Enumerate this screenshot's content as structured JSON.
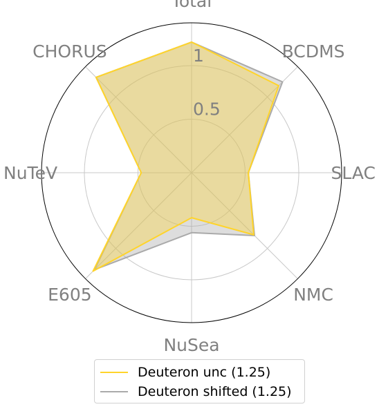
{
  "chart_data": {
    "type": "radar",
    "axes": [
      "Total",
      "BCDMS",
      "SLAC",
      "NMC",
      "NuSea",
      "E605",
      "NuTeV",
      "CHORUS"
    ],
    "radial_ticks": [
      {
        "value": 0.5,
        "label": "0.5"
      },
      {
        "value": 1,
        "label": "1"
      }
    ],
    "rmax": 1.4,
    "series": [
      {
        "name": "Deuteron unc (1.25)",
        "color": "#FFD42A",
        "values": [
          1.22,
          1.15,
          0.53,
          0.82,
          0.42,
          1.3,
          0.47,
          1.26
        ]
      },
      {
        "name": "Deuteron shifted (1.25)",
        "color": "#AAAAAA",
        "values": [
          1.22,
          1.2,
          0.53,
          0.83,
          0.56,
          1.28,
          0.47,
          1.26
        ]
      }
    ],
    "legend_position": "bottom",
    "grid": true
  }
}
